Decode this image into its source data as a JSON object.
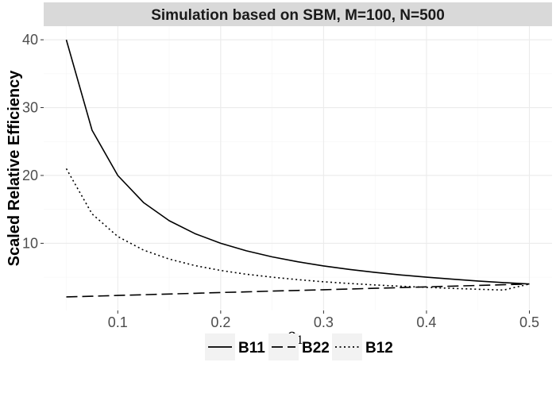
{
  "chart_data": {
    "type": "line",
    "title": "Simulation based on SBM, M=100, N=500",
    "xlabel": "ρ",
    "xlabel_subscript": "1",
    "ylabel": "Scaled Relative Efficiency",
    "xlim": [
      0.028,
      0.522
    ],
    "ylim": [
      0.1,
      42.0
    ],
    "x_ticks": [
      0.1,
      0.2,
      0.3,
      0.4,
      0.5
    ],
    "x_tick_labels": [
      "0.1",
      "0.2",
      "0.3",
      "0.4",
      "0.5"
    ],
    "y_ticks": [
      10,
      20,
      30,
      40
    ],
    "y_tick_labels": [
      "10",
      "20",
      "30",
      "40"
    ],
    "x": [
      0.05,
      0.075,
      0.1,
      0.125,
      0.15,
      0.175,
      0.2,
      0.225,
      0.25,
      0.275,
      0.3,
      0.325,
      0.35,
      0.375,
      0.4,
      0.425,
      0.45,
      0.475,
      0.5
    ],
    "series": [
      {
        "name": "B11",
        "style": "solid",
        "values": [
          40.0,
          26.67,
          20.0,
          16.0,
          13.33,
          11.43,
          10.0,
          8.89,
          8.0,
          7.27,
          6.67,
          6.15,
          5.71,
          5.33,
          5.0,
          4.71,
          4.44,
          4.21,
          4.0
        ]
      },
      {
        "name": "B22",
        "style": "dashed",
        "values": [
          2.1,
          2.2,
          2.31,
          2.42,
          2.52,
          2.63,
          2.74,
          2.84,
          2.95,
          3.05,
          3.16,
          3.26,
          3.37,
          3.47,
          3.58,
          3.68,
          3.79,
          3.89,
          4.0
        ]
      },
      {
        "name": "B12",
        "style": "dotted",
        "values": [
          21.0,
          14.33,
          11.0,
          9.0,
          7.67,
          6.71,
          6.0,
          5.44,
          5.0,
          4.64,
          4.33,
          4.08,
          3.86,
          3.67,
          3.5,
          3.35,
          3.22,
          3.11,
          4.0
        ]
      }
    ],
    "grid": true,
    "legend_position": "bottom",
    "colors": {
      "line": "#000000",
      "strip": "#d9d9d9",
      "grid_major": "#ebebeb",
      "grid_minor": "#f5f5f5",
      "axis": "#333333"
    }
  }
}
